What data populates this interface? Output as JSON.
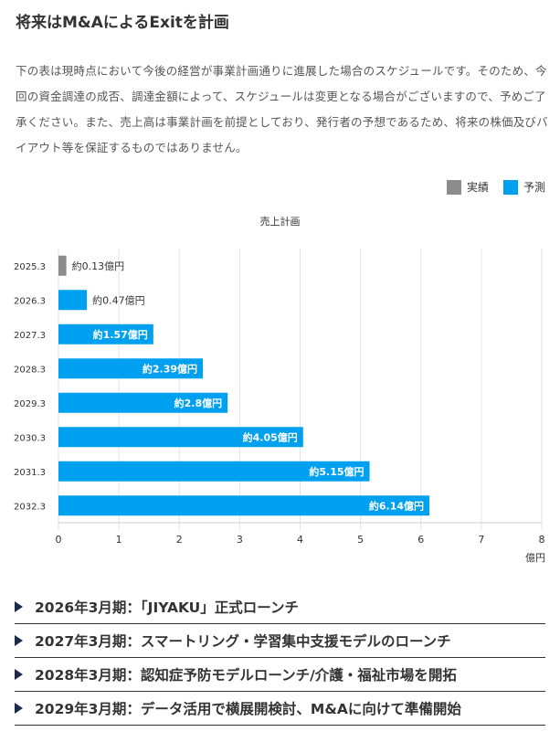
{
  "heading": "将来はM&AによるExitを計画",
  "intro": "下の表は現時点において今後の経営が事業計画通りに進展した場合のスケジュールです。そのため、今回の資金調達の成否、調達金額によって、スケジュールは変更となる場合がございますので、予めご了承ください。また、売上高は事業計画を前提としており、発行者の予想であるため、将来の株価及びバイアウト等を保証するものではありません。",
  "legend": {
    "actual": "実績",
    "forecast": "予測",
    "actual_color": "#8c8c8c",
    "forecast_color": "#00a0f0"
  },
  "chart_data": {
    "type": "bar",
    "orientation": "horizontal",
    "title": "売上計画",
    "categories": [
      "2025.3",
      "2026.3",
      "2027.3",
      "2028.3",
      "2029.3",
      "2030.3",
      "2031.3",
      "2032.3"
    ],
    "values": [
      0.13,
      0.47,
      1.57,
      2.39,
      2.8,
      4.05,
      5.15,
      6.14
    ],
    "labels": [
      "約0.13億円",
      "約0.47億円",
      "約1.57億円",
      "約2.39億円",
      "約2.8億円",
      "約4.05億円",
      "約5.15億円",
      "約6.14億円"
    ],
    "kinds": [
      "actual",
      "forecast",
      "forecast",
      "forecast",
      "forecast",
      "forecast",
      "forecast",
      "forecast"
    ],
    "xticks": [
      "0",
      "1",
      "2",
      "3",
      "4",
      "5",
      "6",
      "7",
      "8"
    ],
    "xlim": [
      0,
      8
    ],
    "xlabel": "億円",
    "ylabel": ""
  },
  "milestones": [
    "2026年3月期：「JIYAKU」正式ローンチ",
    "2027年3月期：スマートリング・学習集中支援モデルのローンチ",
    "2028年3月期：認知症予防モデルローンチ/介護・福祉市場を開拓",
    "2029年3月期：データ活用で横展開検討、M&Aに向けて準備開始"
  ]
}
